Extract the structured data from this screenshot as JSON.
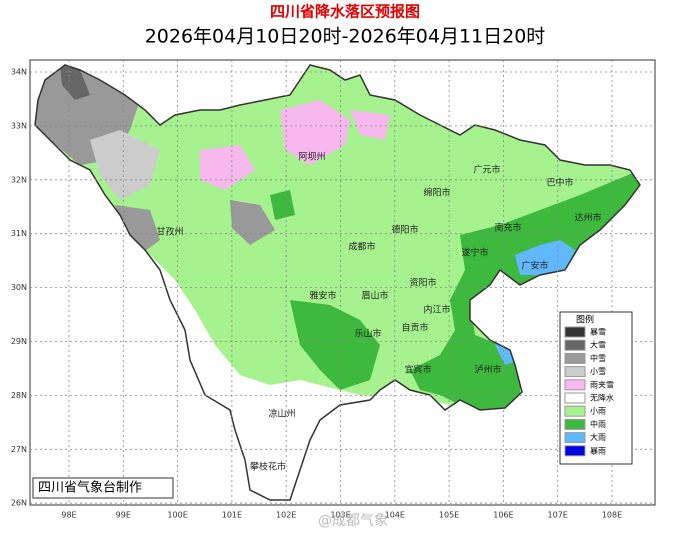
{
  "header": {
    "title": "四川省降水落区预报图",
    "subtitle": "2026年04月10日20时-2026年04月11日20时"
  },
  "lat_labels": [
    "34N",
    "33N",
    "32N",
    "31N",
    "30N",
    "29N",
    "28N",
    "27N",
    "26N"
  ],
  "lon_labels": [
    "98E",
    "99E",
    "100E",
    "101E",
    "102E",
    "103E",
    "104E",
    "105E",
    "106E",
    "107E",
    "108E"
  ],
  "cities": [
    "阿坝州",
    "甘孜州",
    "广元市",
    "巴中市",
    "绵阳市",
    "达州市",
    "德阳市",
    "南充市",
    "成都市",
    "遂宁市",
    "广安市",
    "资阳市",
    "雅安市",
    "眉山市",
    "内江市",
    "乐山市",
    "自贡市",
    "泸州市",
    "宜宾市",
    "凉山州",
    "攀枝花市"
  ],
  "legend": {
    "title": "图例",
    "items": [
      {
        "label": "暴雪",
        "color": "#333333"
      },
      {
        "label": "大雪",
        "color": "#666666"
      },
      {
        "label": "中雪",
        "color": "#999999"
      },
      {
        "label": "小雪",
        "color": "#cccccc"
      },
      {
        "label": "雨夹雪",
        "color": "#f7b8ee"
      },
      {
        "label": "无降水",
        "color": "#ffffff"
      },
      {
        "label": "小雨",
        "color": "#a6f28f"
      },
      {
        "label": "中雨",
        "color": "#3dba3d"
      },
      {
        "label": "大雨",
        "color": "#61b8ff"
      },
      {
        "label": "暴雨",
        "color": "#0000e1"
      }
    ]
  },
  "footer": "四川省气象台制作",
  "watermark": "@成都气象"
}
